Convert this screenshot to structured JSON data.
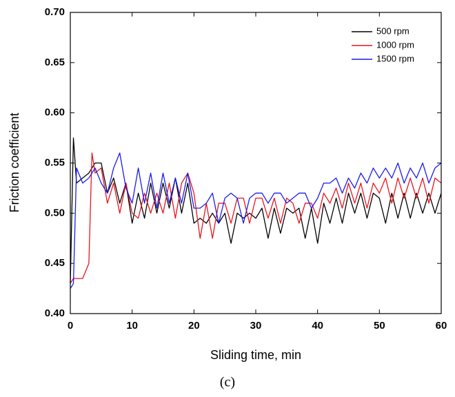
{
  "chart_data": {
    "type": "line",
    "xlabel": "Sliding time, min",
    "ylabel": "Friction coefficient",
    "caption": "(c)",
    "x": [
      0,
      0.5,
      1,
      2,
      3,
      3.5,
      4,
      5,
      6,
      7,
      8,
      9,
      10,
      11,
      12,
      13,
      14,
      15,
      16,
      17,
      18,
      19,
      20,
      21,
      22,
      23,
      24,
      25,
      26,
      27,
      28,
      29,
      30,
      31,
      32,
      33,
      34,
      35,
      36,
      37,
      38,
      39,
      40,
      41,
      42,
      43,
      44,
      45,
      46,
      47,
      48,
      49,
      50,
      51,
      52,
      53,
      54,
      55,
      56,
      57,
      58,
      59,
      60
    ],
    "series": [
      {
        "name": "500 rpm",
        "color": "#000000",
        "values": [
          0.43,
          0.575,
          0.53,
          0.535,
          0.54,
          0.545,
          0.55,
          0.55,
          0.52,
          0.535,
          0.51,
          0.53,
          0.49,
          0.52,
          0.495,
          0.53,
          0.5,
          0.53,
          0.505,
          0.535,
          0.5,
          0.53,
          0.49,
          0.495,
          0.49,
          0.5,
          0.49,
          0.5,
          0.47,
          0.5,
          0.495,
          0.5,
          0.495,
          0.505,
          0.475,
          0.505,
          0.48,
          0.505,
          0.5,
          0.505,
          0.475,
          0.505,
          0.47,
          0.51,
          0.49,
          0.515,
          0.49,
          0.52,
          0.5,
          0.52,
          0.495,
          0.52,
          0.515,
          0.49,
          0.52,
          0.495,
          0.52,
          0.495,
          0.52,
          0.5,
          0.52,
          0.5,
          0.52
        ]
      },
      {
        "name": "1000 rpm",
        "color": "#e8141c",
        "values": [
          0.43,
          0.435,
          0.435,
          0.435,
          0.45,
          0.56,
          0.54,
          0.545,
          0.51,
          0.53,
          0.5,
          0.53,
          0.5,
          0.495,
          0.52,
          0.5,
          0.52,
          0.5,
          0.53,
          0.495,
          0.53,
          0.54,
          0.52,
          0.475,
          0.51,
          0.475,
          0.51,
          0.51,
          0.49,
          0.515,
          0.515,
          0.49,
          0.515,
          0.515,
          0.495,
          0.515,
          0.49,
          0.515,
          0.51,
          0.49,
          0.51,
          0.51,
          0.495,
          0.52,
          0.51,
          0.525,
          0.505,
          0.53,
          0.51,
          0.53,
          0.505,
          0.53,
          0.52,
          0.535,
          0.51,
          0.535,
          0.515,
          0.535,
          0.515,
          0.535,
          0.51,
          0.535,
          0.53
        ]
      },
      {
        "name": "1500 rpm",
        "color": "#1a1aee",
        "values": [
          0.425,
          0.43,
          0.545,
          0.53,
          0.535,
          0.54,
          0.545,
          0.53,
          0.52,
          0.545,
          0.56,
          0.525,
          0.51,
          0.545,
          0.51,
          0.54,
          0.505,
          0.54,
          0.51,
          0.535,
          0.51,
          0.54,
          0.505,
          0.505,
          0.51,
          0.52,
          0.49,
          0.515,
          0.52,
          0.515,
          0.49,
          0.515,
          0.52,
          0.52,
          0.51,
          0.52,
          0.52,
          0.51,
          0.515,
          0.52,
          0.52,
          0.505,
          0.515,
          0.53,
          0.53,
          0.535,
          0.52,
          0.535,
          0.525,
          0.54,
          0.53,
          0.545,
          0.535,
          0.545,
          0.535,
          0.55,
          0.53,
          0.545,
          0.535,
          0.55,
          0.53,
          0.545,
          0.55
        ]
      }
    ],
    "xlim": [
      0,
      60
    ],
    "xticks": [
      0,
      10,
      20,
      30,
      40,
      50,
      60
    ],
    "ylim": [
      0.4,
      0.7
    ],
    "yticks": [
      {
        "value": 0.4,
        "label": "0.40"
      },
      {
        "value": 0.45,
        "label": "0.45"
      },
      {
        "value": 0.5,
        "label": "0.50"
      },
      {
        "value": 0.55,
        "label": "0.55"
      },
      {
        "value": 0.6,
        "label": "0.60"
      },
      {
        "value": 0.65,
        "label": "0.65"
      },
      {
        "value": 0.7,
        "label": "0.70"
      }
    ],
    "grid": false,
    "legend": "upper right"
  }
}
